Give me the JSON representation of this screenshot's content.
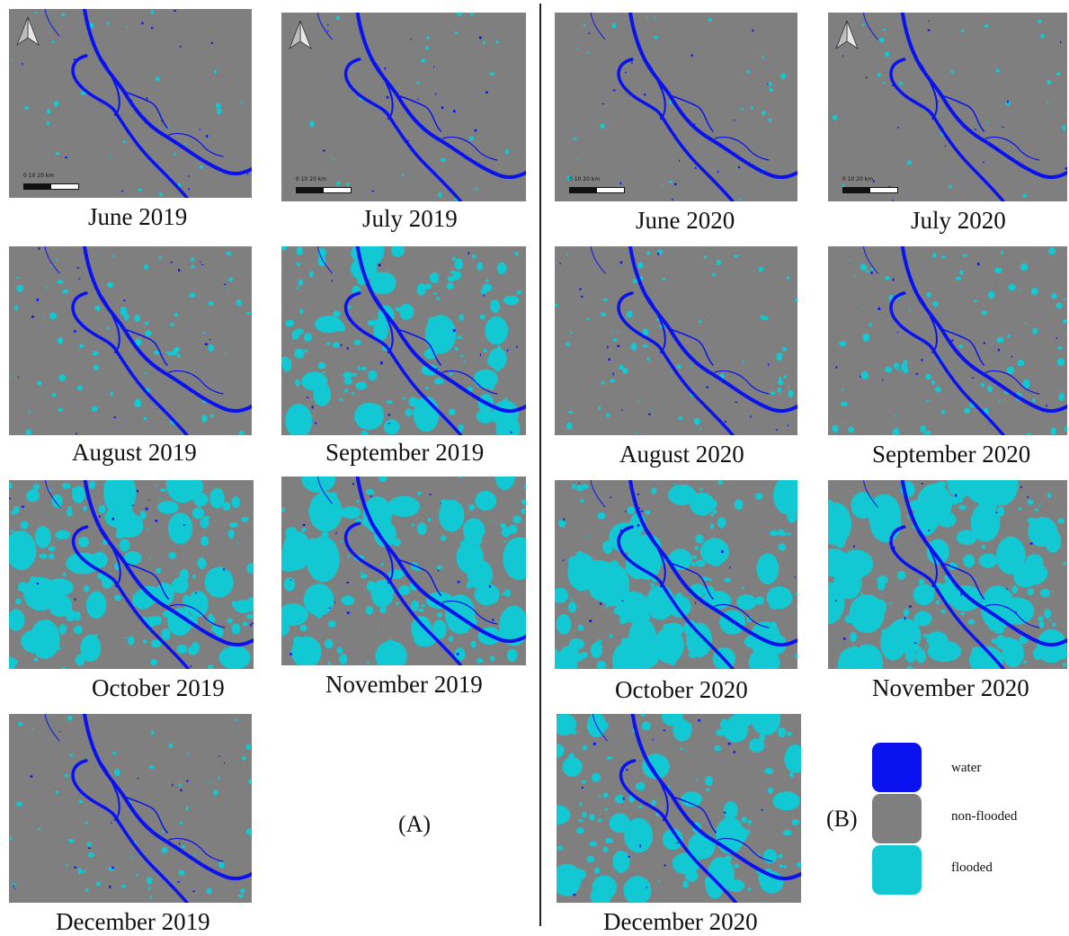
{
  "colors": {
    "water": "#0a12f0",
    "non_flooded": "#7f7f7f",
    "flooded": "#12c8d2"
  },
  "group_labels": {
    "a": "(A)",
    "b": "(B)"
  },
  "scale_bar_labels": "0   10   20 km",
  "legend": [
    {
      "label": "water",
      "color": "#0a12f0"
    },
    {
      "label": "non-flooded",
      "color": "#7f7f7f"
    },
    {
      "label": "flooded",
      "color": "#12c8d2"
    }
  ],
  "panels": [
    {
      "caption": "June 2019",
      "flood_level": 0.03,
      "north_arrow": true,
      "scale_bar": true
    },
    {
      "caption": "July 2019",
      "flood_level": 0.02,
      "north_arrow": true,
      "scale_bar": true
    },
    {
      "caption": "August 2019",
      "flood_level": 0.18
    },
    {
      "caption": "September 2019",
      "flood_level": 0.45
    },
    {
      "caption": "October 2019",
      "flood_level": 0.55
    },
    {
      "caption": "November 2019",
      "flood_level": 0.5
    },
    {
      "caption": "December 2019",
      "flood_level": 0.15
    },
    {
      "caption": "June 2020",
      "flood_level": 0.03,
      "north_arrow": false,
      "scale_bar": true
    },
    {
      "caption": "July 2020",
      "flood_level": 0.02,
      "north_arrow": true,
      "scale_bar": true
    },
    {
      "caption": "August 2020",
      "flood_level": 0.17
    },
    {
      "caption": "September 2020",
      "flood_level": 0.25
    },
    {
      "caption": "October 2020",
      "flood_level": 0.5
    },
    {
      "caption": "November 2020",
      "flood_level": 0.55
    },
    {
      "caption": "December 2020",
      "flood_level": 0.42
    }
  ]
}
